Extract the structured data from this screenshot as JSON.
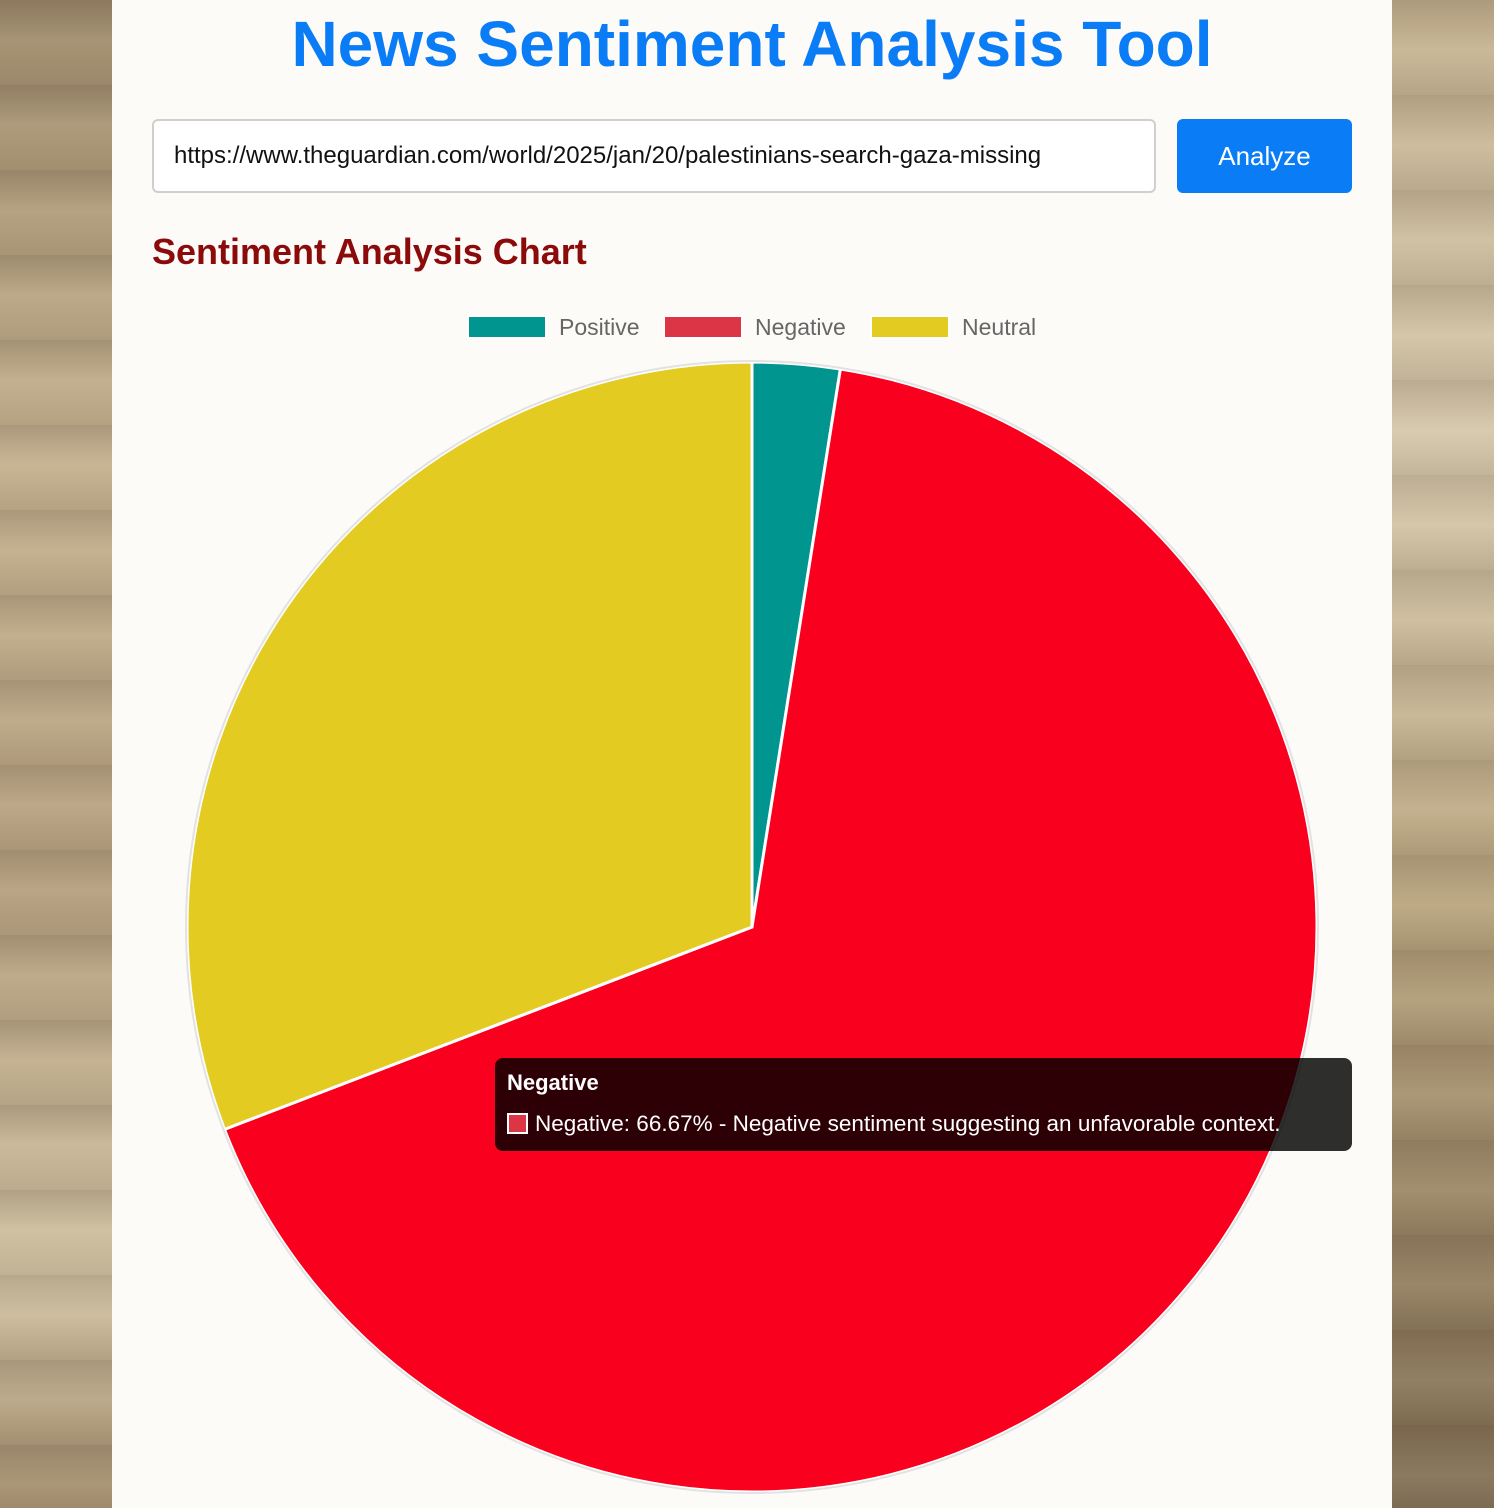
{
  "header": {
    "title": "News Sentiment Analysis Tool"
  },
  "search": {
    "url_value": "https://www.theguardian.com/world/2025/jan/20/palestinians-search-gaza-missing",
    "analyze_label": "Analyze"
  },
  "section": {
    "title": "Sentiment Analysis Chart"
  },
  "chart_data": {
    "type": "pie",
    "categories": [
      "Positive",
      "Negative",
      "Neutral"
    ],
    "values": [
      2.5,
      66.67,
      30.83
    ],
    "colors": [
      "#00968f",
      "#f8001e",
      "#e4cb22"
    ],
    "legend_colors": [
      "#00968f",
      "#dc3545",
      "#e4cb22"
    ],
    "legend": [
      "Positive",
      "Negative",
      "Neutral"
    ],
    "legend_position": "top"
  },
  "tooltip": {
    "title": "Negative",
    "body": "Negative: 66.67% - Negative sentiment suggesting an unfavorable context."
  }
}
